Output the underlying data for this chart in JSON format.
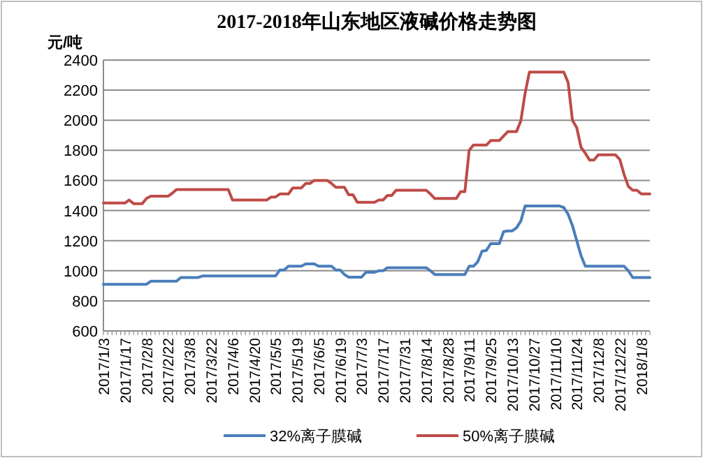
{
  "chart_data": {
    "type": "line",
    "title": "2017-2018年山东地区液碱价格走势图",
    "ylabel": "元/吨",
    "categories": [
      "2017/1/3",
      null,
      null,
      null,
      null,
      "2017/1/17",
      null,
      null,
      null,
      null,
      "2017/2/8",
      null,
      null,
      null,
      null,
      "2017/2/22",
      null,
      null,
      null,
      null,
      "2017/3/8",
      null,
      null,
      null,
      null,
      "2017/3/22",
      null,
      null,
      null,
      null,
      "2017/4/6",
      null,
      null,
      null,
      null,
      "2017/4/20",
      null,
      null,
      null,
      null,
      "2017/5/5",
      null,
      null,
      null,
      null,
      "2017/5/19",
      null,
      null,
      null,
      null,
      "2017/6/5",
      null,
      null,
      null,
      null,
      "2017/6/19",
      null,
      null,
      null,
      null,
      "2017/7/3",
      null,
      null,
      null,
      null,
      "2017/7/17",
      null,
      null,
      null,
      null,
      "2017/7/31",
      null,
      null,
      null,
      null,
      "2017/8/14",
      null,
      null,
      null,
      null,
      "2017/8/28",
      null,
      null,
      null,
      null,
      "2017/9/11",
      null,
      null,
      null,
      null,
      "2017/9/25",
      null,
      null,
      null,
      null,
      "2017/10/13",
      null,
      null,
      null,
      null,
      "2017/10/27",
      null,
      null,
      null,
      null,
      "2017/11/10",
      null,
      null,
      null,
      null,
      "2017/11/24",
      null,
      null,
      null,
      null,
      "2017/12/8",
      null,
      null,
      null,
      null,
      "2017/12/22",
      null,
      null,
      null,
      null,
      "2018/1/8",
      null,
      null
    ],
    "series": [
      {
        "name": "32%离子膜碱",
        "color": "#4a7ebb",
        "values": [
          910,
          910,
          910,
          910,
          910,
          910,
          910,
          910,
          910,
          910,
          910,
          930,
          930,
          930,
          930,
          930,
          930,
          930,
          955,
          955,
          955,
          955,
          955,
          965,
          965,
          965,
          965,
          965,
          965,
          965,
          965,
          965,
          965,
          965,
          965,
          965,
          965,
          965,
          965,
          965,
          965,
          1005,
          1005,
          1030,
          1030,
          1030,
          1030,
          1045,
          1045,
          1045,
          1030,
          1030,
          1030,
          1030,
          1005,
          1005,
          975,
          957,
          957,
          957,
          957,
          990,
          990,
          990,
          1000,
          1000,
          1020,
          1020,
          1020,
          1020,
          1020,
          1020,
          1020,
          1020,
          1020,
          1020,
          1000,
          975,
          975,
          975,
          975,
          975,
          975,
          975,
          975,
          1030,
          1030,
          1060,
          1130,
          1135,
          1180,
          1180,
          1180,
          1260,
          1265,
          1265,
          1285,
          1330,
          1430,
          1430,
          1430,
          1430,
          1430,
          1430,
          1430,
          1430,
          1430,
          1420,
          1375,
          1300,
          1200,
          1100,
          1030,
          1030,
          1030,
          1030,
          1030,
          1030,
          1030,
          1030,
          1030,
          1030,
          1000,
          955,
          955,
          955,
          955,
          955
        ]
      },
      {
        "name": "50%离子膜碱",
        "color": "#be4b48",
        "values": [
          1450,
          1450,
          1450,
          1450,
          1450,
          1450,
          1470,
          1445,
          1445,
          1445,
          1480,
          1495,
          1495,
          1495,
          1495,
          1495,
          1515,
          1540,
          1540,
          1540,
          1540,
          1540,
          1540,
          1540,
          1540,
          1540,
          1540,
          1540,
          1540,
          1540,
          1470,
          1470,
          1470,
          1470,
          1470,
          1470,
          1470,
          1470,
          1470,
          1490,
          1490,
          1510,
          1510,
          1510,
          1550,
          1550,
          1550,
          1580,
          1580,
          1600,
          1600,
          1600,
          1600,
          1580,
          1555,
          1555,
          1555,
          1505,
          1505,
          1455,
          1455,
          1455,
          1455,
          1455,
          1470,
          1470,
          1500,
          1500,
          1535,
          1535,
          1535,
          1535,
          1535,
          1535,
          1535,
          1535,
          1510,
          1480,
          1480,
          1480,
          1480,
          1480,
          1480,
          1525,
          1525,
          1800,
          1835,
          1835,
          1835,
          1835,
          1865,
          1865,
          1865,
          1895,
          1925,
          1925,
          1925,
          1995,
          2180,
          2320,
          2320,
          2320,
          2320,
          2320,
          2320,
          2320,
          2320,
          2320,
          2250,
          2000,
          1950,
          1820,
          1780,
          1735,
          1735,
          1770,
          1770,
          1770,
          1770,
          1770,
          1740,
          1640,
          1560,
          1535,
          1535,
          1510,
          1510,
          1510
        ]
      }
    ],
    "ylim": [
      600,
      2400
    ],
    "yticks": [
      600,
      800,
      1000,
      1200,
      1400,
      1600,
      1800,
      2000,
      2200,
      2400
    ],
    "grid": "y",
    "legend": "bottom",
    "marker": "none",
    "line_style": "solid"
  }
}
